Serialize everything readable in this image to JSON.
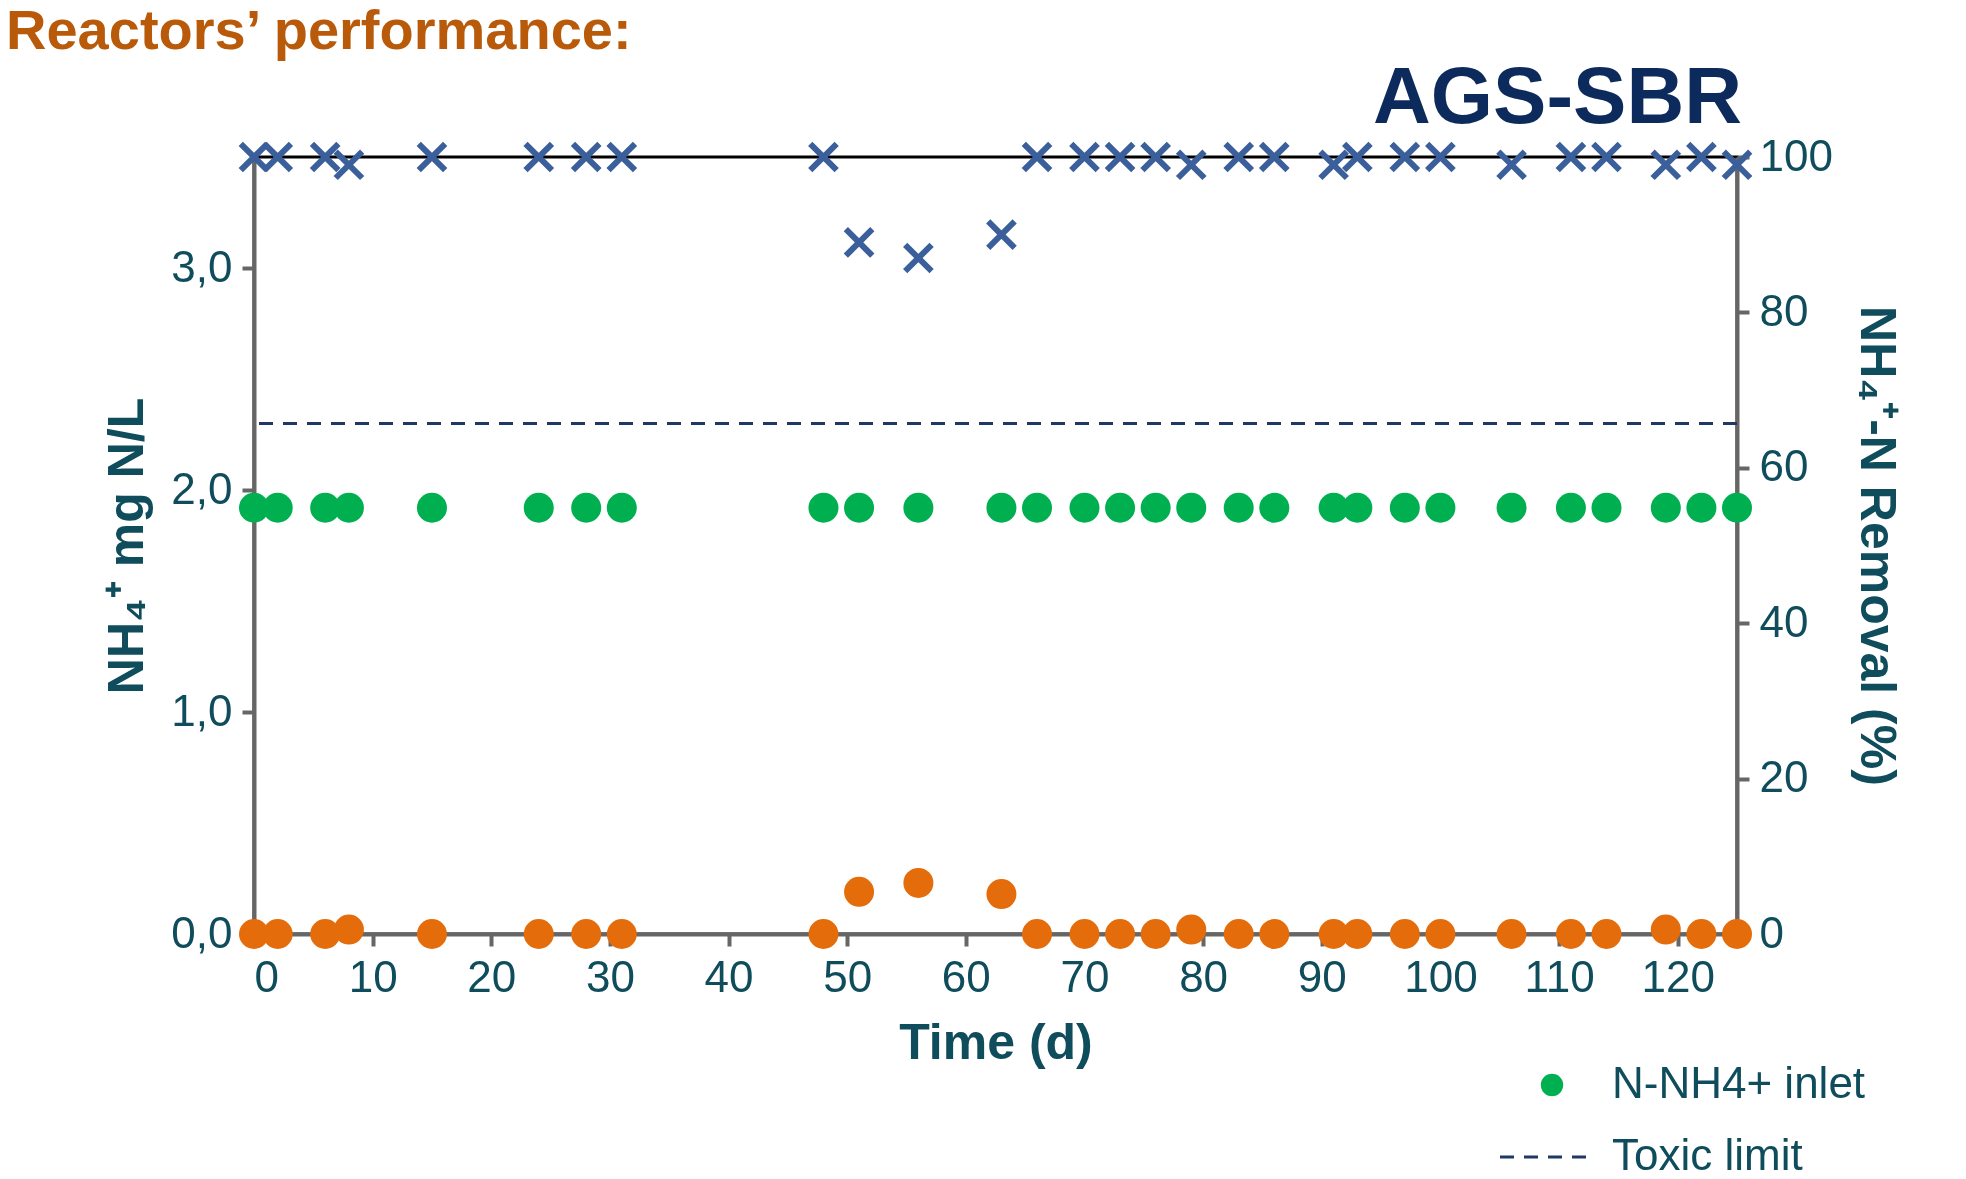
{
  "chart_data": {
    "type": "scatter",
    "title": "Reactors’ performance:",
    "subtitle": "AGS-SBR",
    "xlabel": "Time (d)",
    "ylabel": "NH₄⁺ mg N/L",
    "y2label": "NH₄⁺-N Removal (%)",
    "x": [
      0,
      2,
      6,
      8,
      15,
      24,
      28,
      31,
      48,
      51,
      56,
      63,
      66,
      70,
      73,
      76,
      79,
      83,
      86,
      91,
      93,
      97,
      100,
      106,
      111,
      114,
      119,
      122,
      125
    ],
    "series": [
      {
        "name": "N-NH4+ inlet",
        "color": "#00b050",
        "marker": "circle",
        "values": [
          1.92,
          1.92,
          1.92,
          1.92,
          1.92,
          1.92,
          1.92,
          1.92,
          1.92,
          1.92,
          1.92,
          1.92,
          1.92,
          1.92,
          1.92,
          1.92,
          1.92,
          1.92,
          1.92,
          1.92,
          1.92,
          1.92,
          1.92,
          1.92,
          1.92,
          1.92,
          1.92,
          1.92,
          1.92
        ]
      },
      {
        "color": "#e46c0a",
        "marker": "circle",
        "values": [
          0,
          0,
          0,
          0.02,
          0,
          0,
          0,
          0,
          0,
          0.19,
          0.23,
          0.18,
          0,
          0,
          0,
          0,
          0.02,
          0,
          0,
          0,
          0,
          0,
          0,
          0,
          0,
          0,
          0.02,
          0,
          0
        ]
      },
      {
        "color": "#3a5f9a",
        "marker": "cross",
        "axis": "y2",
        "values": [
          100,
          100,
          100,
          99,
          100,
          100,
          100,
          100,
          100,
          89,
          87,
          90,
          100,
          100,
          100,
          100,
          99,
          100,
          100,
          99,
          100,
          100,
          100,
          99,
          100,
          100,
          99,
          100,
          99
        ]
      }
    ],
    "xlim": [
      0,
      125
    ],
    "xticks": [
      0,
      10,
      20,
      30,
      40,
      50,
      60,
      70,
      80,
      90,
      100,
      110,
      120
    ],
    "ylim": [
      0,
      3.5
    ],
    "yticks": [
      {
        "value": 0,
        "label": "0,0"
      },
      {
        "value": 1,
        "label": "1,0"
      },
      {
        "value": 2,
        "label": "2,0"
      },
      {
        "value": 3,
        "label": "3,0"
      }
    ],
    "y2lim": [
      0,
      100
    ],
    "y2ticks": [
      0,
      20,
      40,
      60,
      80,
      100
    ],
    "ref_lines": [
      {
        "axis": "y",
        "value": 2.3,
        "label": "Toxic limit",
        "color": "#1f3864",
        "line_style": "dashed"
      }
    ],
    "legend": "bottom right",
    "grid": false
  }
}
